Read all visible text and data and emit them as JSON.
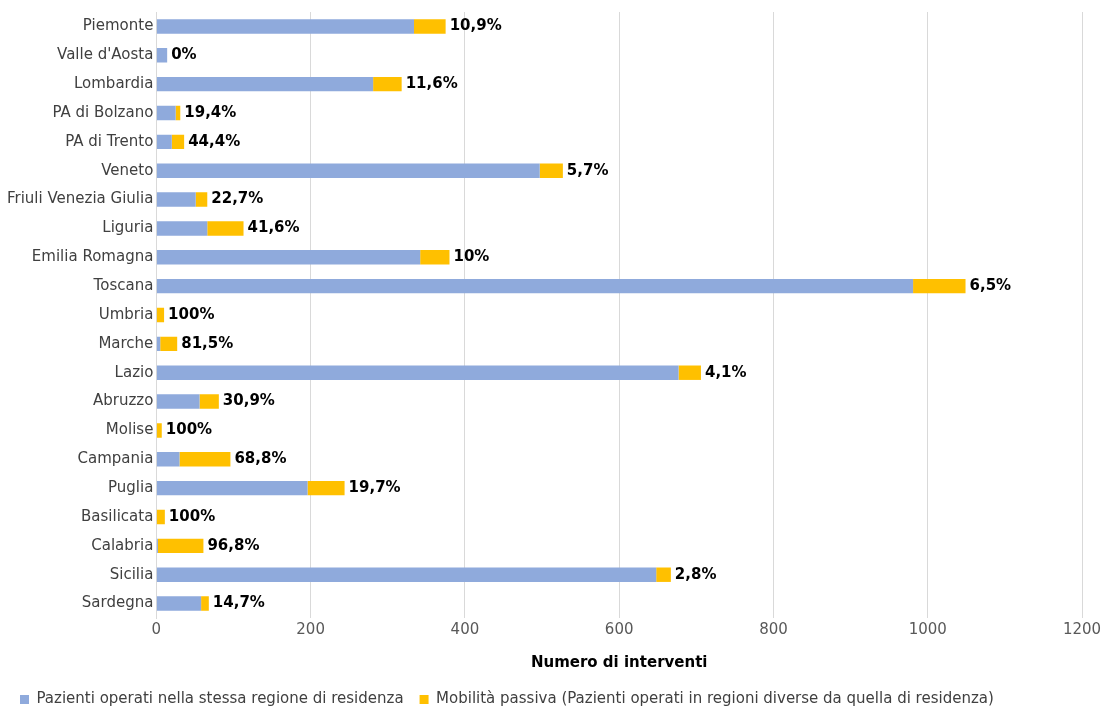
{
  "chart_data": {
    "type": "bar",
    "orientation": "horizontal",
    "stacked": true,
    "categories": [
      "Piemonte",
      "Valle d'Aosta",
      "Lombardia",
      "PA di Bolzano",
      "PA di Trento",
      "Veneto",
      "Friuli Venezia Giulia",
      "Liguria",
      "Emilia Romagna",
      "Toscana",
      "Umbria",
      "Marche",
      "Lazio",
      "Abruzzo",
      "Molise",
      "Campania",
      "Puglia",
      "Basilicata",
      "Calabria",
      "Sicilia",
      "Sardegna"
    ],
    "series": [
      {
        "name": "Pazienti operati nella stessa regione di residenza",
        "color": "#8faadc",
        "values": [
          334,
          14,
          281,
          25,
          20,
          497,
          51,
          66,
          342,
          981,
          0,
          5,
          677,
          56,
          0,
          30,
          196,
          0,
          2,
          648,
          58
        ]
      },
      {
        "name": "Mobilità passiva (Pazienti operati in regioni diverse da quella di residenza)",
        "color": "#ffc000",
        "values": [
          41,
          0,
          37,
          6,
          16,
          30,
          15,
          47,
          38,
          68,
          10,
          22,
          29,
          25,
          7,
          66,
          48,
          11,
          59,
          19,
          10
        ]
      }
    ],
    "annotations": [
      {
        "text": "10,9%",
        "x": 375,
        "y": "Piemonte"
      },
      {
        "text": "0%",
        "x": 14,
        "y": "Valle d'Aosta"
      },
      {
        "text": "11,6%",
        "x": 318,
        "y": "Lombardia"
      },
      {
        "text": "19,4%",
        "x": 31,
        "y": "PA di Bolzano"
      },
      {
        "text": "44,4%",
        "x": 36,
        "y": "PA di Trento"
      },
      {
        "text": "5,7%",
        "x": 527,
        "y": "Veneto"
      },
      {
        "text": "22,7%",
        "x": 66,
        "y": "Friuli Venezia Giulia"
      },
      {
        "text": "41,6%",
        "x": 113,
        "y": "Liguria"
      },
      {
        "text": "10%",
        "x": 380,
        "y": "Emilia Romagna"
      },
      {
        "text": "6,5%",
        "x": 1049,
        "y": "Toscana"
      },
      {
        "text": "100%",
        "x": 10,
        "y": "Umbria"
      },
      {
        "text": "81,5%",
        "x": 27,
        "y": "Marche"
      },
      {
        "text": "4,1%",
        "x": 706,
        "y": "Lazio"
      },
      {
        "text": "30,9%",
        "x": 81,
        "y": "Abruzzo"
      },
      {
        "text": "100%",
        "x": 7,
        "y": "Molise"
      },
      {
        "text": "68,8%",
        "x": 96,
        "y": "Campania"
      },
      {
        "text": "19,7%",
        "x": 244,
        "y": "Puglia"
      },
      {
        "text": "100%",
        "x": 11,
        "y": "Basilicata"
      },
      {
        "text": "96,8%",
        "x": 61,
        "y": "Calabria"
      },
      {
        "text": "2,8%",
        "x": 667,
        "y": "Sicilia"
      },
      {
        "text": "14,7%",
        "x": 68,
        "y": "Sardegna"
      }
    ],
    "xlabel": "Numero di interventi",
    "xlim": [
      0,
      1200
    ],
    "xticks": [
      0,
      200,
      400,
      600,
      800,
      1000,
      1200
    ],
    "grid": "x",
    "legend": "bottom"
  }
}
